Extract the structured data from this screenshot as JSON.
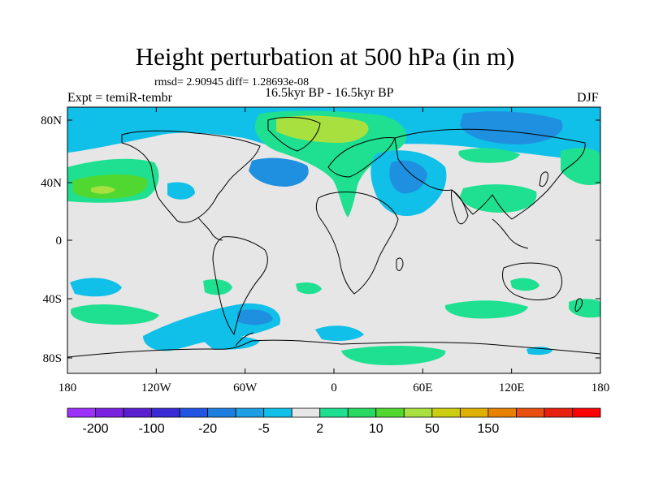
{
  "title": "Height perturbation at 500 hPa (in m)",
  "stats": "rmsd= 2.90945 diff= 1.28693e-08",
  "experiment": "Expt = temiR-tembr",
  "period": "16.5kyr BP - 16.5kyr BP",
  "season": "DJF",
  "colors": {
    "background": "#e6e6e6",
    "light_blue": "#10c0e8",
    "mid_blue": "#1f8fdf",
    "light_green": "#1ee090",
    "mid_green": "#50d830",
    "yellow_green": "#a8e040"
  },
  "map": {
    "x_ticks": [
      "180",
      "120W",
      "60W",
      "0",
      "60E",
      "120E",
      "180"
    ],
    "y_ticks": [
      "80N",
      "40N",
      "0",
      "40S",
      "80S"
    ]
  },
  "colorbar": {
    "colors": [
      "#9b30ff",
      "#7a22e0",
      "#5b1fcf",
      "#3a2ad6",
      "#1f55e0",
      "#1e7ee0",
      "#1e9fe4",
      "#10c0e8",
      "#e6e6e6",
      "#1ee090",
      "#28d860",
      "#50d830",
      "#a8e040",
      "#cccc10",
      "#e0b000",
      "#e88000",
      "#e85010",
      "#e82010",
      "#ff0000"
    ],
    "labels": [
      "-200",
      "-100",
      "-20",
      "-5",
      "2",
      "10",
      "50",
      "150"
    ]
  }
}
